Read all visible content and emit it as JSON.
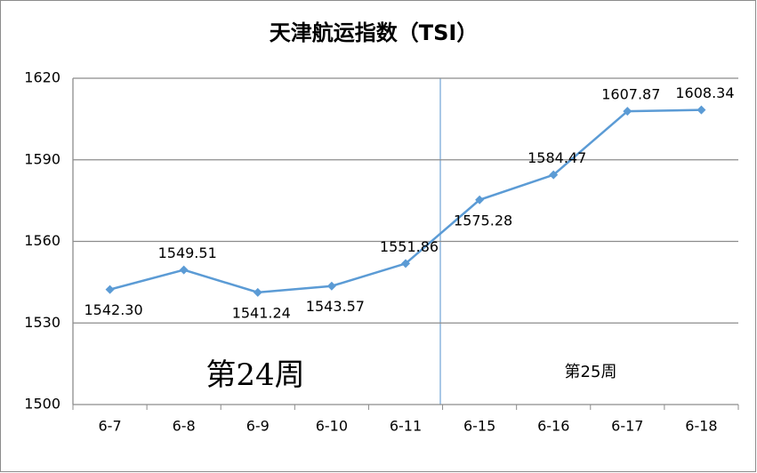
{
  "chart_data": {
    "type": "line",
    "title": "天津航运指数（TSI）",
    "categories": [
      "6-7",
      "6-8",
      "6-9",
      "6-10",
      "6-11",
      "6-15",
      "6-16",
      "6-17",
      "6-18"
    ],
    "values": [
      1542.3,
      1549.51,
      1541.24,
      1543.57,
      1551.86,
      1575.28,
      1584.47,
      1607.87,
      1608.34
    ],
    "value_labels": [
      "1542.30",
      "1549.51",
      "1541.24",
      "1543.57",
      "1551.86",
      "1575.28",
      "1584.47",
      "1607.87",
      "1608.34"
    ],
    "color": "#5b9bd5",
    "annotations": [
      "第24周",
      "第25周"
    ],
    "ylim": [
      1500,
      1620
    ],
    "yticks": [
      1500,
      1530,
      1560,
      1590,
      1620
    ],
    "grid": true
  }
}
